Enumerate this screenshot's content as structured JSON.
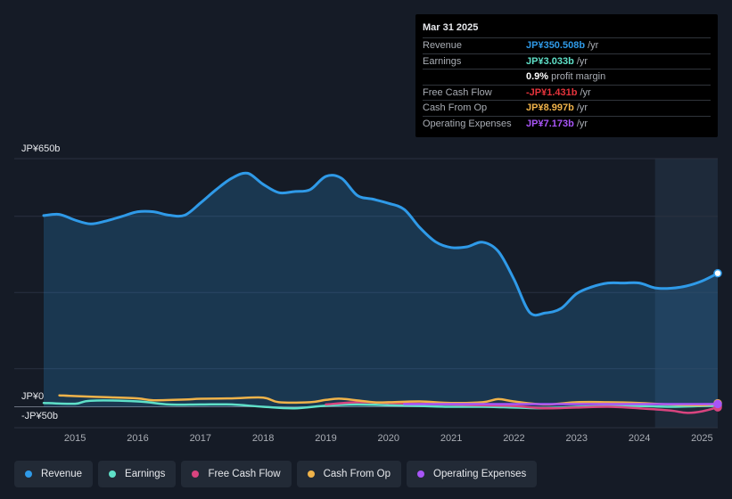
{
  "tooltip": {
    "date": "Mar 31 2025",
    "rows": [
      {
        "label": "Revenue",
        "value": "JP¥350.508b",
        "unit": "/yr",
        "color": "#2f9ae8"
      },
      {
        "label": "Earnings",
        "value": "JP¥3.033b",
        "unit": "/yr",
        "color": "#5fe0c8"
      },
      {
        "label": "",
        "value": "0.9%",
        "unit": "profit margin",
        "color": "#ffffff"
      },
      {
        "label": "Free Cash Flow",
        "value": "-JP¥1.431b",
        "unit": "/yr",
        "color": "#e5343c"
      },
      {
        "label": "Cash From Op",
        "value": "JP¥8.997b",
        "unit": "/yr",
        "color": "#f0b34a"
      },
      {
        "label": "Operating Expenses",
        "value": "JP¥7.173b",
        "unit": "/yr",
        "color": "#a855f7"
      }
    ]
  },
  "legend": [
    {
      "label": "Revenue",
      "color": "#2f9ae8"
    },
    {
      "label": "Earnings",
      "color": "#5fe0c8"
    },
    {
      "label": "Free Cash Flow",
      "color": "#d9447f"
    },
    {
      "label": "Cash From Op",
      "color": "#f0b34a"
    },
    {
      "label": "Operating Expenses",
      "color": "#a855f7"
    }
  ],
  "chart_data": {
    "type": "area",
    "title": "",
    "xlabel": "",
    "ylabel": "",
    "y_tick_labels": [
      "JP¥650b",
      "JP¥0",
      "-JP¥50b"
    ],
    "ylim": [
      -50,
      650
    ],
    "xlim": [
      2014.5,
      2025.25
    ],
    "x_ticks": [
      2015,
      2016,
      2017,
      2018,
      2019,
      2020,
      2021,
      2022,
      2023,
      2024,
      2025
    ],
    "x_tick_labels": [
      "2015",
      "2016",
      "2017",
      "2018",
      "2019",
      "2020",
      "2021",
      "2022",
      "2023",
      "2024",
      "2025"
    ],
    "forecast_start": 2024.25,
    "series": [
      {
        "name": "Revenue",
        "color": "#2f9ae8",
        "x": [
          2014.5,
          2014.75,
          2015.0,
          2015.25,
          2015.5,
          2015.75,
          2016.0,
          2016.25,
          2016.5,
          2016.75,
          2017.0,
          2017.25,
          2017.5,
          2017.75,
          2018.0,
          2018.25,
          2018.5,
          2018.75,
          2019.0,
          2019.25,
          2019.5,
          2019.75,
          2020.0,
          2020.25,
          2020.5,
          2020.75,
          2021.0,
          2021.25,
          2021.5,
          2021.75,
          2022.0,
          2022.25,
          2022.5,
          2022.75,
          2023.0,
          2023.25,
          2023.5,
          2023.75,
          2024.0,
          2024.25,
          2024.5,
          2024.75,
          2025.0,
          2025.25
        ],
        "values": [
          502,
          505,
          490,
          480,
          488,
          500,
          512,
          512,
          503,
          503,
          535,
          570,
          600,
          613,
          584,
          562,
          565,
          570,
          605,
          600,
          555,
          545,
          534,
          518,
          470,
          433,
          418,
          420,
          432,
          408,
          335,
          248,
          246,
          258,
          297,
          315,
          325,
          325,
          325,
          312,
          311,
          317,
          330,
          350.508
        ]
      },
      {
        "name": "Earnings",
        "color": "#5fe0c8",
        "x": [
          2014.5,
          2015.0,
          2015.25,
          2016.0,
          2016.5,
          2017.0,
          2017.5,
          2018.0,
          2018.5,
          2019.0,
          2019.5,
          2020.0,
          2020.5,
          2021.0,
          2021.5,
          2022.0,
          2022.5,
          2023.0,
          2023.5,
          2024.0,
          2024.5,
          2025.0,
          2025.25
        ],
        "values": [
          10,
          8,
          16,
          14,
          6,
          6,
          6,
          0,
          -4,
          3,
          6,
          4,
          2,
          0,
          0,
          -2,
          -4,
          0,
          2,
          2,
          0,
          2,
          3.033
        ]
      },
      {
        "name": "Free Cash Flow",
        "color": "#d9447f",
        "x": [
          2019.0,
          2019.5,
          2020.0,
          2020.5,
          2021.0,
          2021.5,
          2022.0,
          2022.5,
          2023.0,
          2023.5,
          2024.0,
          2024.5,
          2024.75,
          2025.0,
          2025.25
        ],
        "values": [
          6,
          12,
          10,
          8,
          6,
          4,
          2,
          -4,
          -2,
          0,
          -4,
          -10,
          -16,
          -12,
          -1.431
        ]
      },
      {
        "name": "Cash From Op",
        "color": "#f0b34a",
        "x": [
          2014.75,
          2015.0,
          2015.5,
          2016.0,
          2016.25,
          2016.75,
          2017.0,
          2017.5,
          2018.0,
          2018.25,
          2018.75,
          2019.0,
          2019.25,
          2019.75,
          2020.0,
          2020.5,
          2021.0,
          2021.5,
          2021.75,
          2022.0,
          2022.5,
          2023.0,
          2023.5,
          2024.0,
          2024.5,
          2025.0,
          2025.25
        ],
        "values": [
          30,
          28,
          25,
          22,
          17,
          19,
          21,
          22,
          24,
          12,
          12,
          18,
          21,
          12,
          12,
          14,
          10,
          12,
          20,
          14,
          6,
          12,
          12,
          10,
          6,
          4,
          8.997
        ]
      },
      {
        "name": "Operating Expenses",
        "color": "#a855f7",
        "x": [
          2020.25,
          2021.0,
          2021.5,
          2022.0,
          2022.5,
          2023.0,
          2023.5,
          2024.0,
          2024.5,
          2025.0,
          2025.25
        ],
        "values": [
          7,
          7,
          7,
          7,
          7,
          7,
          7,
          7,
          7,
          7,
          7.173
        ]
      }
    ]
  }
}
